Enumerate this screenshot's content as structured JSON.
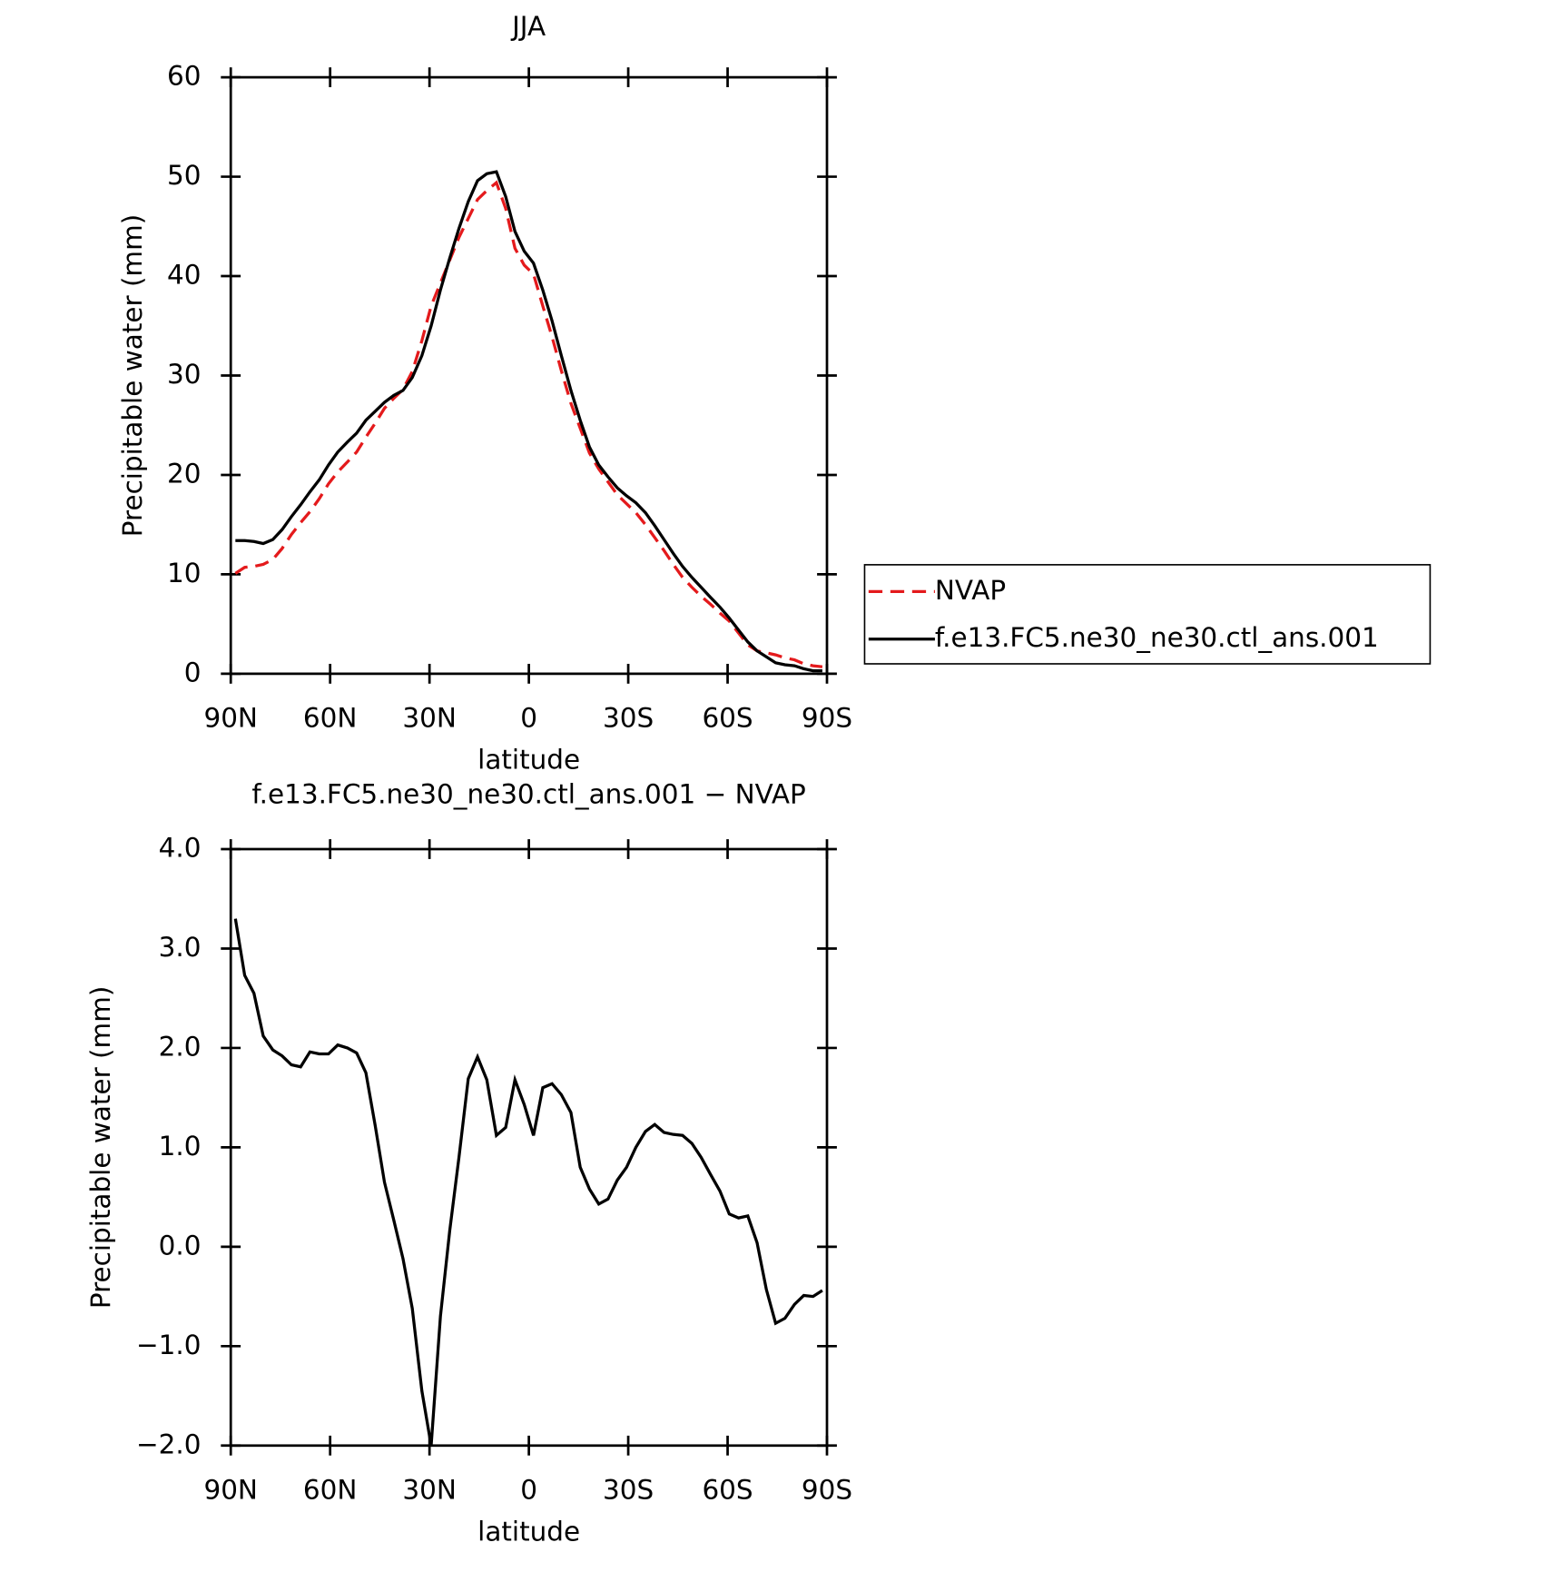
{
  "chart_data": [
    {
      "type": "line",
      "title": "JJA",
      "xlabel": "latitude",
      "ylabel": "Precipitable water (mm)",
      "x": [
        88.6,
        85.8,
        83.0,
        80.2,
        77.3,
        74.5,
        71.7,
        68.9,
        66.1,
        63.3,
        60.5,
        57.7,
        54.8,
        52.0,
        49.2,
        46.4,
        43.6,
        40.8,
        38.0,
        35.2,
        32.3,
        29.5,
        26.7,
        23.9,
        21.1,
        18.3,
        15.5,
        12.7,
        9.8,
        7.0,
        4.2,
        1.4,
        -1.4,
        -4.2,
        -7.0,
        -9.8,
        -12.7,
        -15.5,
        -18.3,
        -21.1,
        -23.9,
        -26.7,
        -29.5,
        -32.3,
        -35.2,
        -38.0,
        -40.8,
        -43.6,
        -46.4,
        -49.2,
        -52.0,
        -54.8,
        -57.7,
        -60.5,
        -63.3,
        -66.1,
        -68.9,
        -71.7,
        -74.5,
        -77.3,
        -80.2,
        -83.0,
        -85.8,
        -88.6
      ],
      "series": [
        {
          "name": "NVAP",
          "color": "#e41a1c",
          "line_style": "dashed",
          "values": [
            10.1,
            10.7,
            10.8,
            11.0,
            11.5,
            12.6,
            14.0,
            15.2,
            16.3,
            17.6,
            19.1,
            20.3,
            21.3,
            22.3,
            23.8,
            25.2,
            26.7,
            27.7,
            28.6,
            30.4,
            33.5,
            37.0,
            39.3,
            41.6,
            43.9,
            45.8,
            47.7,
            48.6,
            49.4,
            46.8,
            42.8,
            41.1,
            40.2,
            37.0,
            33.9,
            30.5,
            27.2,
            24.7,
            22.2,
            20.6,
            19.3,
            18.0,
            17.1,
            16.2,
            15.0,
            13.7,
            12.4,
            11.0,
            9.7,
            8.7,
            7.8,
            7.0,
            6.1,
            5.3,
            4.1,
            2.9,
            2.3,
            2.1,
            1.9,
            1.6,
            1.4,
            1.0,
            0.8,
            0.7
          ]
        },
        {
          "name": "f.e13.FC5.ne30_ne30.ctl_ans.001",
          "color": "#000000",
          "line_style": "solid",
          "values": [
            13.4,
            13.4,
            13.3,
            13.1,
            13.5,
            14.5,
            15.8,
            17.0,
            18.3,
            19.5,
            21.0,
            22.3,
            23.3,
            24.2,
            25.5,
            26.4,
            27.3,
            28.0,
            28.5,
            29.8,
            32.0,
            35.0,
            38.6,
            41.8,
            44.8,
            47.5,
            49.6,
            50.3,
            50.5,
            48.0,
            44.5,
            42.5,
            41.3,
            38.6,
            35.5,
            32.0,
            28.5,
            25.5,
            22.8,
            21.0,
            19.8,
            18.7,
            17.9,
            17.2,
            16.2,
            14.9,
            13.5,
            12.1,
            10.8,
            9.7,
            8.7,
            7.7,
            6.7,
            5.6,
            4.4,
            3.2,
            2.3,
            1.7,
            1.1,
            0.9,
            0.8,
            0.5,
            0.3,
            0.3
          ]
        }
      ],
      "xlim": [
        90,
        -90
      ],
      "xticks": [
        {
          "value": 90,
          "label": "90N"
        },
        {
          "value": 60,
          "label": "60N"
        },
        {
          "value": 30,
          "label": "30N"
        },
        0,
        {
          "value": -30,
          "label": "30S"
        },
        {
          "value": -60,
          "label": "60S"
        },
        {
          "value": -90,
          "label": "90S"
        }
      ],
      "ylim": [
        0,
        60
      ],
      "yticks": [
        0,
        10,
        20,
        30,
        40,
        50,
        60
      ],
      "legend": "right"
    },
    {
      "type": "line",
      "title": "f.e13.FC5.ne30_ne30.ctl_ans.001 − NVAP",
      "xlabel": "latitude",
      "ylabel": "Precipitable water (mm)",
      "x": [
        88.6,
        85.8,
        83.0,
        80.2,
        77.3,
        74.5,
        71.7,
        68.9,
        66.1,
        63.3,
        60.5,
        57.7,
        54.8,
        52.0,
        49.2,
        46.4,
        43.6,
        40.8,
        38.0,
        35.2,
        32.3,
        29.5,
        26.7,
        23.9,
        21.1,
        18.3,
        15.5,
        12.7,
        9.8,
        7.0,
        4.2,
        1.4,
        -1.4,
        -4.2,
        -7.0,
        -9.8,
        -12.7,
        -15.5,
        -18.3,
        -21.1,
        -23.9,
        -26.7,
        -29.5,
        -32.3,
        -35.2,
        -38.0,
        -40.8,
        -43.6,
        -46.4,
        -49.2,
        -52.0,
        -54.8,
        -57.7,
        -60.5,
        -63.3,
        -66.1,
        -68.9,
        -71.7,
        -74.5,
        -77.3,
        -80.2,
        -83.0,
        -85.8,
        -88.6
      ],
      "color": "#000000",
      "values": [
        3.3,
        2.73,
        2.55,
        2.12,
        1.98,
        1.92,
        1.83,
        1.81,
        1.96,
        1.94,
        1.94,
        2.03,
        2.0,
        1.95,
        1.75,
        1.22,
        0.65,
        0.27,
        -0.12,
        -0.62,
        -1.45,
        -2.0,
        -0.7,
        0.16,
        0.9,
        1.69,
        1.91,
        1.68,
        1.12,
        1.2,
        1.68,
        1.43,
        1.12,
        1.6,
        1.64,
        1.53,
        1.35,
        0.8,
        0.58,
        0.43,
        0.48,
        0.67,
        0.8,
        1.0,
        1.16,
        1.23,
        1.15,
        1.13,
        1.12,
        1.04,
        0.9,
        0.73,
        0.56,
        0.33,
        0.29,
        0.31,
        0.04,
        -0.43,
        -0.77,
        -0.72,
        -0.58,
        -0.49,
        -0.5,
        -0.44
      ],
      "xlim": [
        90,
        -90
      ],
      "xticks": [
        {
          "value": 90,
          "label": "90N"
        },
        {
          "value": 60,
          "label": "60N"
        },
        {
          "value": 30,
          "label": "30N"
        },
        0,
        {
          "value": -30,
          "label": "30S"
        },
        {
          "value": -60,
          "label": "60S"
        },
        {
          "value": -90,
          "label": "90S"
        }
      ],
      "ylim": [
        -2,
        4
      ],
      "yticks": [
        {
          "value": -2,
          "label": "−2.0"
        },
        {
          "value": -1,
          "label": "−1.0"
        },
        {
          "value": 0,
          "label": "0.0"
        },
        {
          "value": 1,
          "label": "1.0"
        },
        {
          "value": 2,
          "label": "2.0"
        },
        {
          "value": 3,
          "label": "3.0"
        },
        {
          "value": 4,
          "label": "4.0"
        }
      ]
    }
  ]
}
